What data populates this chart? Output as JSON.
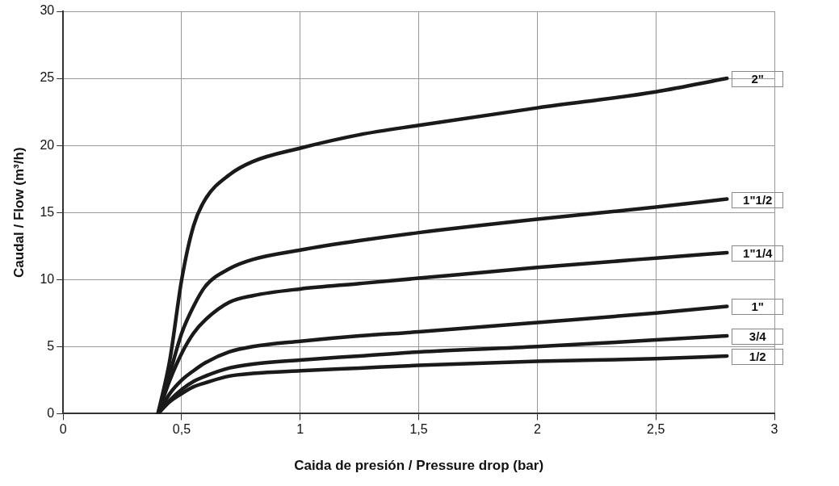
{
  "chart_data": {
    "type": "line",
    "xlabel": "Caida de presión / Pressure drop (bar)",
    "ylabel": "Caudal / Flow (m³/h)",
    "xlim": [
      0,
      3
    ],
    "xticks": [
      0,
      {
        "value": 0.5,
        "label": "0,5"
      },
      1,
      {
        "value": 1.5,
        "label": "1,5"
      },
      2,
      {
        "value": 2.5,
        "label": "2,5"
      },
      3
    ],
    "ylim": [
      0,
      30
    ],
    "yticks": [
      0,
      5,
      10,
      15,
      20,
      25,
      30
    ],
    "grid": true,
    "legend": false,
    "marker": "none",
    "line_style": "solid",
    "x": [
      0.4,
      0.45,
      0.5,
      0.55,
      0.6,
      0.7,
      0.8,
      1,
      1.25,
      1.5,
      2,
      2.5,
      2.8
    ],
    "series": [
      {
        "name": "2\"",
        "color": "#1a1a1a",
        "values": [
          0,
          4,
          10,
          14,
          16,
          17.8,
          18.8,
          19.8,
          20.8,
          21.5,
          22.8,
          24,
          25
        ]
      },
      {
        "name": "1\"1/2",
        "color": "#1a1a1a",
        "values": [
          0,
          3,
          6,
          8,
          9.5,
          10.8,
          11.5,
          12.2,
          12.9,
          13.5,
          14.5,
          15.4,
          16
        ]
      },
      {
        "name": "1\"1/4",
        "color": "#1a1a1a",
        "values": [
          0,
          2.5,
          4.5,
          6,
          7,
          8.3,
          8.8,
          9.3,
          9.7,
          10.1,
          10.9,
          11.6,
          12
        ]
      },
      {
        "name": "1\"",
        "color": "#1a1a1a",
        "values": [
          0,
          1.5,
          2.5,
          3.2,
          3.8,
          4.6,
          5,
          5.4,
          5.8,
          6.1,
          6.8,
          7.5,
          8
        ]
      },
      {
        "name": "3/4",
        "color": "#1a1a1a",
        "values": [
          0,
          1,
          1.8,
          2.4,
          2.8,
          3.4,
          3.7,
          4,
          4.3,
          4.6,
          5,
          5.5,
          5.8
        ]
      },
      {
        "name": "1/2",
        "color": "#1a1a1a",
        "values": [
          0,
          0.9,
          1.5,
          2,
          2.3,
          2.8,
          3,
          3.2,
          3.4,
          3.6,
          3.9,
          4.1,
          4.3
        ]
      }
    ]
  }
}
